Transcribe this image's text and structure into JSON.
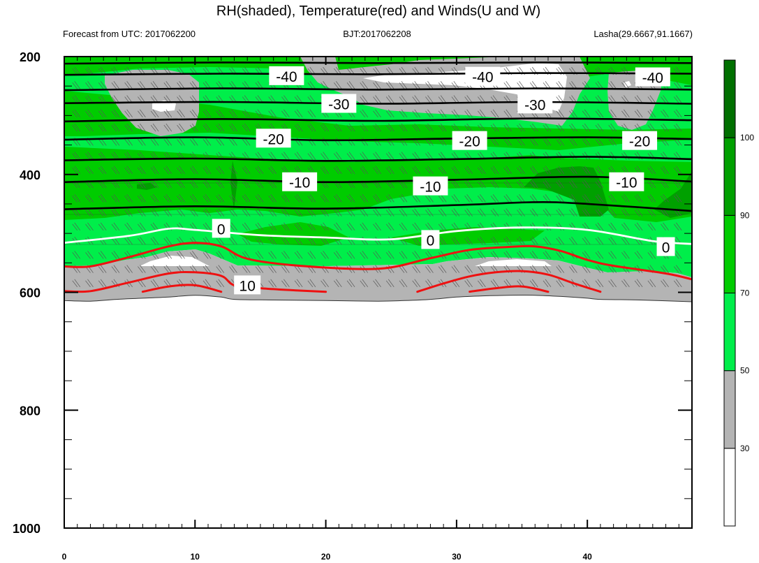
{
  "header": {
    "title": "RH(shaded), Temperature(red) and Winds(U and W)",
    "left": "Forecast from UTC: 2017062200",
    "center": "BJT:2017062208",
    "right": "Lasha(29.6667,91.1667)"
  },
  "chart_data": {
    "type": "contour",
    "title": "RH(shaded), Temperature(red) and Winds(U and W)",
    "xlim": [
      0,
      48
    ],
    "ylim": [
      200,
      1000
    ],
    "x_ticks": [
      0,
      10,
      20,
      30,
      40
    ],
    "x_tick_labels": [
      "0",
      "10",
      "20",
      "30",
      "40"
    ],
    "y_ticks": [
      200,
      400,
      600,
      800,
      1000
    ],
    "y_tick_labels": [
      "200",
      "400",
      "600",
      "800",
      "1000"
    ],
    "colorbar": {
      "levels": [
        30,
        50,
        70,
        90,
        100
      ],
      "labels": [
        "30",
        "50",
        "70",
        "90",
        "100"
      ],
      "colors": [
        "#ffffff",
        "#b4b4b4",
        "#00ee4a",
        "#00cc00",
        "#00a000",
        "#007000"
      ]
    },
    "colors": {
      "gray": "#b4b4b4",
      "light_green": "#00ee4a",
      "green": "#00cc00",
      "dark_green": "#00a000",
      "temp_black": "#000000",
      "temp_zero": "#ffffff",
      "temp_warm": "#ee1111"
    },
    "surface": {
      "x": [
        0,
        2,
        4,
        6,
        8,
        10,
        12,
        13,
        16,
        20,
        24,
        26,
        28,
        30,
        32,
        34,
        36,
        38,
        40,
        41,
        44,
        48
      ],
      "p": [
        614,
        615,
        612,
        610,
        608,
        605,
        608,
        612,
        613,
        614,
        615,
        614,
        612,
        608,
        606,
        605,
        605,
        607,
        610,
        612,
        613,
        616
      ]
    },
    "temperature_lines": [
      {
        "value": -45,
        "x": [
          0,
          12,
          24,
          36,
          48
        ],
        "p": [
          212,
          210,
          211,
          210,
          211
        ]
      },
      {
        "value": -40,
        "x": [
          0,
          12,
          24,
          36,
          48
        ],
        "p": [
          231,
          229,
          230,
          228,
          229
        ]
      },
      {
        "value": -35,
        "x": [
          0,
          12,
          24,
          36,
          48
        ],
        "p": [
          257,
          254,
          256,
          254,
          256
        ]
      },
      {
        "value": -30,
        "x": [
          0,
          12,
          24,
          36,
          48
        ],
        "p": [
          279,
          277,
          280,
          277,
          280
        ]
      },
      {
        "value": -25,
        "x": [
          0,
          12,
          24,
          36,
          48
        ],
        "p": [
          310,
          306,
          309,
          305,
          308
        ]
      },
      {
        "value": -20,
        "x": [
          0,
          10,
          20,
          30,
          40,
          48
        ],
        "p": [
          341,
          337,
          342,
          339,
          337,
          340
        ]
      },
      {
        "value": -15,
        "x": [
          0,
          10,
          20,
          30,
          40,
          48
        ],
        "p": [
          376,
          373,
          377,
          374,
          370,
          374
        ]
      },
      {
        "value": -10,
        "x": [
          0,
          10,
          20,
          30,
          40,
          48
        ],
        "p": [
          413,
          408,
          413,
          409,
          404,
          412
        ]
      },
      {
        "value": -5,
        "x": [
          0,
          10,
          20,
          30,
          36,
          40,
          48
        ],
        "p": [
          459,
          454,
          458,
          452,
          447,
          450,
          462
        ]
      },
      {
        "value": 0,
        "x": [
          0,
          5,
          8,
          10,
          15,
          20,
          25,
          30,
          35,
          40,
          45,
          48
        ],
        "p": [
          516,
          504,
          492,
          494,
          503,
          507,
          510,
          496,
          490,
          494,
          513,
          518
        ]
      },
      {
        "value": 5,
        "x": [
          0,
          2,
          5,
          8,
          10,
          12,
          14,
          18,
          24,
          28,
          31,
          34,
          36,
          38,
          40,
          42,
          46,
          48
        ],
        "p": [
          556,
          556,
          540,
          522,
          516,
          522,
          543,
          555,
          560,
          542,
          528,
          523,
          522,
          530,
          545,
          555,
          568,
          578
        ]
      },
      {
        "value": 10,
        "x": [
          0,
          2,
          5,
          8,
          10,
          12,
          13,
          15,
          18,
          20
        ],
        "p": [
          598,
          598,
          583,
          568,
          566,
          572,
          588,
          593,
          597,
          599
        ]
      },
      {
        "value": 10,
        "x": [
          27,
          29,
          31,
          33,
          35,
          37,
          39,
          41
        ],
        "p": [
          599,
          585,
          573,
          566,
          564,
          570,
          585,
          599
        ]
      },
      {
        "value": 15,
        "x": [
          6,
          8,
          10,
          12
        ],
        "p": [
          599,
          590,
          588,
          599
        ]
      },
      {
        "value": 15,
        "x": [
          31,
          33,
          35,
          37
        ],
        "p": [
          599,
          593,
          590,
          599
        ]
      }
    ],
    "contour_labels": [
      {
        "text": "-40",
        "x": 17,
        "p": 233
      },
      {
        "text": "-40",
        "x": 32,
        "p": 234
      },
      {
        "text": "-40",
        "x": 45,
        "p": 235
      },
      {
        "text": "-30",
        "x": 21,
        "p": 280
      },
      {
        "text": "-30",
        "x": 36,
        "p": 281
      },
      {
        "text": "-20",
        "x": 16,
        "p": 339
      },
      {
        "text": "-20",
        "x": 31,
        "p": 343
      },
      {
        "text": "-20",
        "x": 44,
        "p": 343
      },
      {
        "text": "-10",
        "x": 18,
        "p": 413
      },
      {
        "text": "-10",
        "x": 28,
        "p": 420
      },
      {
        "text": "-10",
        "x": 43,
        "p": 413
      },
      {
        "text": "0",
        "x": 12,
        "p": 492
      },
      {
        "text": "0",
        "x": 28,
        "p": 511
      },
      {
        "text": "0",
        "x": 46,
        "p": 523
      },
      {
        "text": "10",
        "x": 14,
        "p": 588
      }
    ]
  }
}
